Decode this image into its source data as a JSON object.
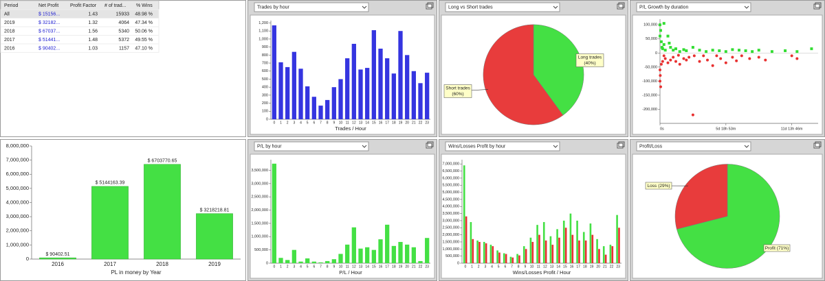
{
  "table": {
    "columns": [
      "Period",
      "Net Profit",
      "Profit Factor",
      "# of trad...",
      "% Wins"
    ],
    "rows": [
      [
        "All",
        "$ 15156...",
        "1.43",
        "15933",
        "48.98 %"
      ],
      [
        "2019",
        "$ 32182...",
        "1.32",
        "4064",
        "47.34 %"
      ],
      [
        "2018",
        "$ 67037...",
        "1.56",
        "5340",
        "50.06 %"
      ],
      [
        "2017",
        "$ 51441...",
        "1.48",
        "5372",
        "49.55 %"
      ],
      [
        "2016",
        "$ 90402...",
        "1.03",
        "1157",
        "47.10 %"
      ]
    ]
  },
  "chart_data": [
    {
      "type": "bar",
      "title": "Trades by hour",
      "xlabel": "Trades / Hour",
      "color": "#3535e0",
      "categories": [
        "0",
        "1",
        "2",
        "3",
        "4",
        "5",
        "6",
        "7",
        "8",
        "9",
        "10",
        "11",
        "12",
        "13",
        "14",
        "15",
        "16",
        "17",
        "18",
        "19",
        "20",
        "21",
        "22",
        "23"
      ],
      "values": [
        1170,
        710,
        650,
        840,
        630,
        410,
        280,
        170,
        240,
        400,
        500,
        760,
        940,
        620,
        640,
        1110,
        880,
        760,
        570,
        1100,
        800,
        600,
        450,
        580
      ],
      "ylim": [
        0,
        1230
      ],
      "yticks": [
        0,
        100,
        200,
        300,
        400,
        500,
        600,
        700,
        800,
        900,
        {
          "value": 1000,
          "label": "1,000"
        },
        {
          "value": 1100,
          "label": "1,100"
        },
        {
          "value": 1200,
          "label": "1,200"
        }
      ]
    },
    {
      "type": "pie",
      "title": "Long vs Short trades",
      "categories": [
        "Long trades",
        "Short trades"
      ],
      "values": [
        40,
        60
      ],
      "value_labels": [
        "(40%)",
        "(60%)"
      ],
      "colors": [
        "#44e044",
        "#e83c3c"
      ]
    },
    {
      "type": "scatter",
      "title": "P/L Growth by duration",
      "series": [
        {
          "color": "#33dd33",
          "x": [
            0,
            0,
            5000,
            10000,
            15000,
            20000,
            30000,
            40000,
            60000,
            80000,
            100000,
            120000,
            150000,
            180000,
            200000,
            250000,
            300000,
            350000,
            400000,
            450000,
            500000,
            550000,
            600000,
            650000,
            700000,
            750000,
            850000,
            950000,
            1040000,
            1150000,
            30000,
            70000
          ],
          "values": [
            100000,
            60000,
            80000,
            40000,
            20000,
            15000,
            105000,
            10000,
            60000,
            20000,
            10000,
            15000,
            5000,
            12000,
            8000,
            20000,
            10000,
            5000,
            10000,
            8000,
            5000,
            12000,
            10000,
            8000,
            5000,
            10000,
            5000,
            8000,
            5000,
            15000,
            30000,
            35000
          ]
        },
        {
          "color": "#e83030",
          "x": [
            0,
            0,
            2000,
            5000,
            10000,
            20000,
            40000,
            60000,
            80000,
            100000,
            120000,
            150000,
            180000,
            200000,
            220000,
            250000,
            260000,
            300000,
            330000,
            360000,
            400000,
            430000,
            460000,
            500000,
            550000,
            580000,
            620000,
            680000,
            750000,
            800000,
            1000000,
            1040000,
            30000,
            140000
          ],
          "values": [
            -60000,
            -100000,
            -80000,
            -120000,
            -40000,
            -30000,
            -20000,
            -35000,
            -25000,
            -15000,
            -30000,
            -40000,
            -20000,
            -25000,
            -15000,
            -220000,
            -10000,
            -30000,
            -10000,
            -25000,
            -45000,
            -10000,
            -20000,
            -35000,
            -15000,
            -28000,
            -10000,
            -20000,
            -15000,
            -25000,
            -10000,
            -20000,
            -10000,
            -8000
          ]
        }
      ],
      "xlim": [
        0,
        1200000
      ],
      "xticks": [
        {
          "value": 0,
          "label": "0s"
        },
        {
          "value": 499980,
          "label": "5d 18h 53m"
        },
        {
          "value": 999960,
          "label": "11d 13h 46m"
        }
      ],
      "ylim": [
        -250000,
        120000
      ],
      "yticks": [
        {
          "value": -200000,
          "label": "-200,000"
        },
        {
          "value": -150000,
          "label": "-150,000"
        },
        {
          "value": -100000,
          "label": "-100,000"
        },
        {
          "value": -50000,
          "label": "-50,000"
        },
        0,
        {
          "value": 50000,
          "label": "50,000"
        },
        {
          "value": 100000,
          "label": "100,000"
        }
      ]
    },
    {
      "type": "bar",
      "xlabel": "PL in money by Year",
      "color": "#44e044",
      "categories": [
        "2016",
        "2017",
        "2018",
        "2019"
      ],
      "values": [
        90402.51,
        5144163.39,
        6703770.65,
        3218218.81
      ],
      "value_labels": [
        "$ 90402.51",
        "$ 5144163.39",
        "$ 6703770.65",
        "$ 3218218.81"
      ],
      "ylim": [
        0,
        8000000
      ],
      "yticks": [
        0,
        {
          "value": 1000000,
          "label": "1,000,000"
        },
        {
          "value": 2000000,
          "label": "2,000,000"
        },
        {
          "value": 3000000,
          "label": "3,000,000"
        },
        {
          "value": 4000000,
          "label": "4,000,000"
        },
        {
          "value": 5000000,
          "label": "5,000,000"
        },
        {
          "value": 6000000,
          "label": "6,000,000"
        },
        {
          "value": 7000000,
          "label": "7,000,000"
        },
        {
          "value": 8000000,
          "label": "8,000,000"
        }
      ]
    },
    {
      "type": "bar",
      "title": "P/L by hour",
      "xlabel": "P/L / Hour",
      "color": "#44e044",
      "categories": [
        "0",
        "1",
        "2",
        "3",
        "4",
        "5",
        "6",
        "7",
        "8",
        "9",
        "10",
        "11",
        "12",
        "13",
        "14",
        "15",
        "16",
        "17",
        "18",
        "19",
        "20",
        "21",
        "22",
        "23"
      ],
      "values": [
        3750000,
        200000,
        120000,
        500000,
        60000,
        180000,
        60000,
        30000,
        80000,
        150000,
        350000,
        700000,
        1350000,
        550000,
        600000,
        500000,
        900000,
        1450000,
        650000,
        800000,
        700000,
        600000,
        80000,
        950000
      ],
      "ylim": [
        0,
        3900000
      ],
      "yticks": [
        0,
        {
          "value": 500000,
          "label": "500,000"
        },
        {
          "value": 1000000,
          "label": "1,000,000"
        },
        {
          "value": 1500000,
          "label": "1,500,000"
        },
        {
          "value": 2000000,
          "label": "2,000,000"
        },
        {
          "value": 2500000,
          "label": "2,500,000"
        },
        {
          "value": 3000000,
          "label": "3,000,000"
        },
        {
          "value": 3500000,
          "label": "3,500,000"
        }
      ]
    },
    {
      "type": "grouped_bar",
      "title": "Wins/Losses Profit by hour",
      "xlabel": "Wins/Losses Profit / Hour",
      "categories": [
        "0",
        "1",
        "2",
        "3",
        "4",
        "5",
        "6",
        "7",
        "8",
        "9",
        "10",
        "11",
        "12",
        "13",
        "14",
        "15",
        "16",
        "17",
        "18",
        "19",
        "20",
        "21",
        "22",
        "23"
      ],
      "series": [
        {
          "color": "#44e044",
          "values": [
            6900000,
            2900000,
            1600000,
            1500000,
            1300000,
            900000,
            700000,
            450000,
            650000,
            1200000,
            1800000,
            2700000,
            2900000,
            1900000,
            2400000,
            3000000,
            3500000,
            3000000,
            2200000,
            2800000,
            1700000,
            1200000,
            1300000,
            3400000
          ]
        },
        {
          "color": "#e83030",
          "values": [
            3300000,
            1700000,
            1500000,
            1400000,
            1200000,
            750000,
            650000,
            400000,
            550000,
            1000000,
            1500000,
            2000000,
            1600000,
            1300000,
            1800000,
            2500000,
            2000000,
            1600000,
            1600000,
            2000000,
            1000000,
            600000,
            1200000,
            2500000
          ]
        }
      ],
      "ylim": [
        0,
        7300000
      ],
      "yticks": [
        0,
        {
          "value": 500000,
          "label": "500,000"
        },
        {
          "value": 1000000,
          "label": "1,000,000"
        },
        {
          "value": 1500000,
          "label": "1,500,000"
        },
        {
          "value": 2000000,
          "label": "2,000,000"
        },
        {
          "value": 2500000,
          "label": "2,500,000"
        },
        {
          "value": 3000000,
          "label": "3,000,000"
        },
        {
          "value": 3500000,
          "label": "3,500,000"
        },
        {
          "value": 4000000,
          "label": "4,000,000"
        },
        {
          "value": 4500000,
          "label": "4,500,000"
        },
        {
          "value": 5000000,
          "label": "5,000,000"
        },
        {
          "value": 5500000,
          "label": "5,500,000"
        },
        {
          "value": 6000000,
          "label": "6,000,000"
        },
        {
          "value": 6500000,
          "label": "6,500,000"
        },
        {
          "value": 7000000,
          "label": "7,000,000"
        }
      ]
    },
    {
      "type": "pie",
      "title": "Profit/Loss",
      "categories": [
        "Profit",
        "Loss"
      ],
      "values": [
        71,
        29
      ],
      "value_labels": [
        "(71%)",
        "(29%)"
      ],
      "colors": [
        "#44e044",
        "#e83c3c"
      ]
    }
  ]
}
